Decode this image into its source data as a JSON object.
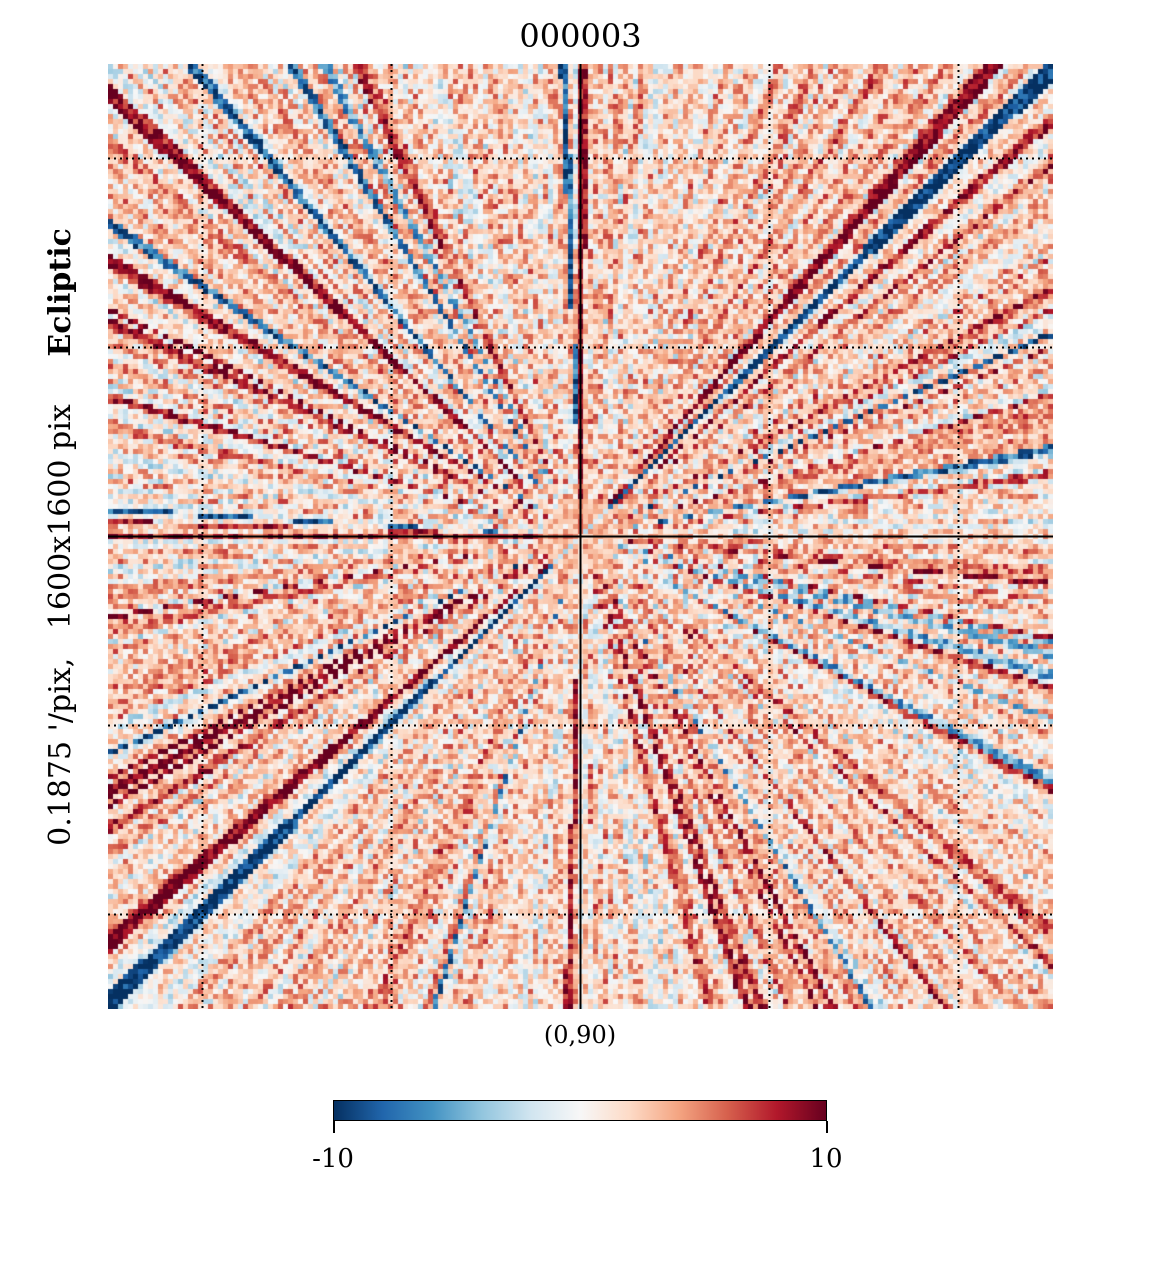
{
  "chart_data": {
    "type": "heatmap",
    "title": "000003",
    "ylabel_parts": [
      "0.1875 '/pix,",
      "1600x1600 pix"
    ],
    "coord_label": "Ecliptic",
    "center_label": "(0,90)",
    "projection": "gnomonic",
    "grid": true,
    "graticule_lines_per_axis": 5,
    "colormap": "RdBu_r",
    "colormap_stops": [
      "#053061",
      "#2166ac",
      "#4393c3",
      "#92c5de",
      "#d1e5f0",
      "#f7f7f7",
      "#fddbc7",
      "#f4a582",
      "#d6604d",
      "#b2182b",
      "#67001f"
    ],
    "colorbar": {
      "min": -10,
      "max": 10,
      "tick_labels": [
        "-10",
        "10"
      ]
    },
    "pattern": "radial streaks converging on the center point, with strong negative diagonal from upper-left to lower-right"
  }
}
